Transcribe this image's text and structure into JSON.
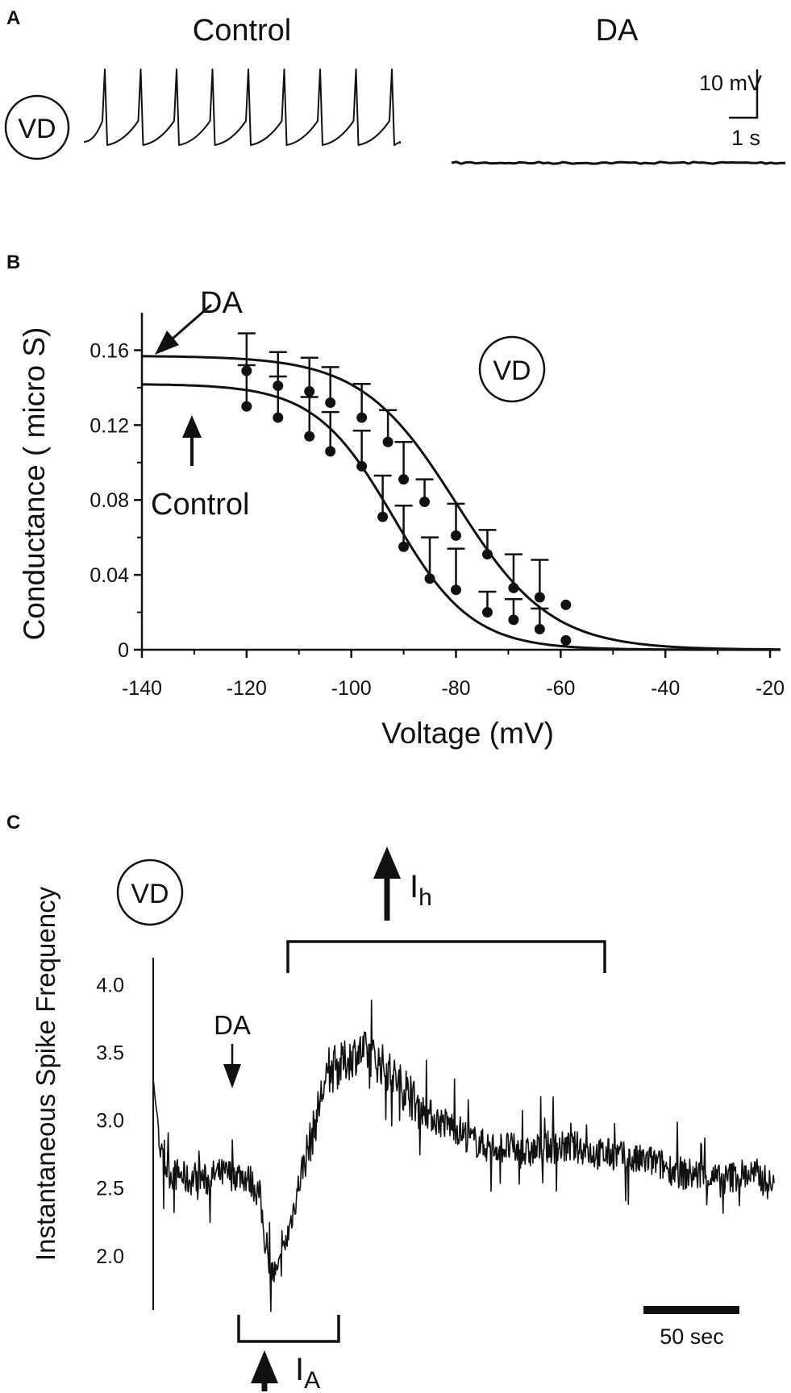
{
  "panel_a": {
    "label": "A",
    "control_title": "Control",
    "da_title": "DA",
    "cell_label": "VD",
    "scale_voltage": "10 mV",
    "scale_time": "1 s"
  },
  "panel_b": {
    "label": "B",
    "cell_label": "VD",
    "da_annotation": "DA",
    "control_annotation": "Control"
  },
  "panel_c": {
    "label": "C",
    "cell_label": "VD",
    "da_annotation": "DA",
    "ih_label": "I",
    "ih_sub": "h",
    "ia_label": "I",
    "ia_sub": "A",
    "scalebar_label": "50 sec"
  },
  "chart_data": [
    {
      "type": "line",
      "title": "",
      "xlabel": "Voltage (mV)",
      "ylabel": "Conductance ( micro S)",
      "xlim": [
        -140,
        -18
      ],
      "ylim": [
        0,
        0.18
      ],
      "xticks": [
        -140,
        -120,
        -100,
        -80,
        -60,
        -40,
        -20
      ],
      "xtick_labels": [
        "-140",
        "-120",
        "-100",
        "-80",
        "-60",
        "-40",
        "-20"
      ],
      "yticks": [
        0,
        0.04,
        0.08,
        0.12,
        0.16
      ],
      "ytick_labels": [
        "0",
        "0.04",
        "0.08",
        "0.12",
        "0.16"
      ],
      "series": [
        {
          "name": "DA",
          "fit": {
            "gmax": 0.157,
            "v_half": -80,
            "slope": 9
          },
          "x": [
            -120,
            -114,
            -108,
            -104,
            -98,
            -93,
            -90,
            -86,
            -80,
            -74,
            -69,
            -64,
            -59
          ],
          "y": [
            0.149,
            0.141,
            0.138,
            0.132,
            0.124,
            0.111,
            0.091,
            0.079,
            0.061,
            0.051,
            0.033,
            0.028,
            0.024
          ],
          "err": [
            0.02,
            0.018,
            0.018,
            0.019,
            0.018,
            0.017,
            0.02,
            0.012,
            0.017,
            0.013,
            0.018,
            0.02,
            0.0
          ]
        },
        {
          "name": "Control",
          "fit": {
            "gmax": 0.142,
            "v_half": -92,
            "slope": 7.5
          },
          "x": [
            -120,
            -114,
            -108,
            -104,
            -98,
            -94,
            -90,
            -85,
            -80,
            -74,
            -69,
            -64,
            -59
          ],
          "y": [
            0.13,
            0.124,
            0.114,
            0.106,
            0.098,
            0.071,
            0.055,
            0.038,
            0.032,
            0.02,
            0.016,
            0.011,
            0.005
          ],
          "err": [
            0.022,
            0.022,
            0.021,
            0.021,
            0.019,
            0.022,
            0.022,
            0.022,
            0.022,
            0.011,
            0.011,
            0.011,
            0.0
          ]
        }
      ]
    },
    {
      "type": "line",
      "title": "",
      "xlabel": "",
      "ylabel": "Instantaneous Spike Frequency",
      "ylim": [
        1.6,
        4.2
      ],
      "yticks": [
        2.0,
        2.5,
        3.0,
        3.5,
        4.0
      ],
      "ytick_labels": [
        "2.0",
        "2.5",
        "3.0",
        "3.5",
        "4.0"
      ],
      "time_span_sec": 350,
      "x": [
        0,
        5,
        10,
        15,
        20,
        25,
        30,
        35,
        40,
        45,
        50,
        55,
        60,
        65,
        70,
        75,
        80,
        85,
        90,
        95,
        100,
        105,
        110,
        115,
        120,
        125,
        130,
        140,
        150,
        160,
        170,
        180,
        190,
        200,
        210,
        220,
        230,
        240,
        250,
        260,
        270,
        280,
        290,
        300,
        310,
        320,
        330,
        340,
        350
      ],
      "values": [
        3.3,
        2.7,
        2.6,
        2.6,
        2.55,
        2.6,
        2.55,
        2.6,
        2.6,
        2.6,
        2.6,
        2.55,
        2.45,
        1.9,
        1.85,
        2.1,
        2.4,
        2.7,
        2.9,
        3.2,
        3.35,
        3.4,
        3.45,
        3.5,
        3.5,
        3.45,
        3.4,
        3.25,
        3.1,
        3.0,
        2.95,
        2.85,
        2.8,
        2.8,
        2.75,
        2.8,
        2.8,
        2.8,
        2.75,
        2.75,
        2.7,
        2.7,
        2.65,
        2.6,
        2.6,
        2.55,
        2.6,
        2.6,
        2.5
      ]
    }
  ]
}
